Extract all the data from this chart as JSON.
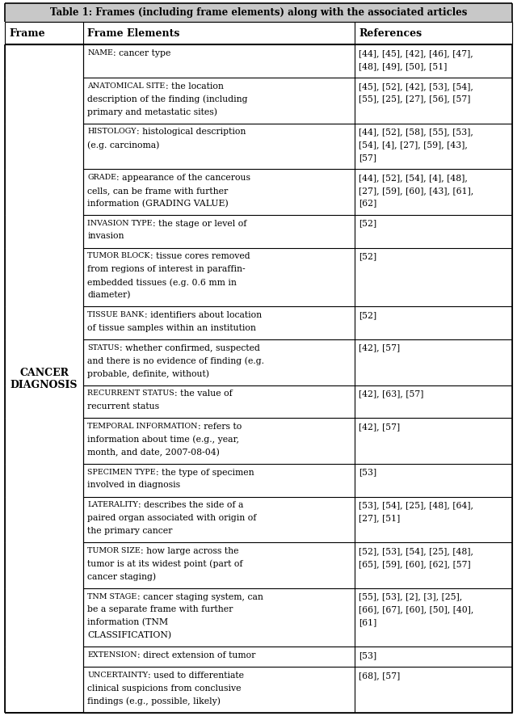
{
  "title": "Table 1: Frames (including frame elements) along with the associated articles",
  "headers": [
    "Frame",
    "Frame Elements",
    "References"
  ],
  "frame_label": "CANCER\nDIAGNOSIS",
  "rows": [
    {
      "sc": "Name",
      "rest": ": cancer type",
      "ref": "[44], [45], [42], [46], [47],\n[48], [49], [50], [51]",
      "nlines_elem": 1,
      "nlines_ref": 2
    },
    {
      "sc": "Anatomical Site",
      "rest": ": the location\ndescription of the finding (including\nprimary and metastatic sites)",
      "ref": "[45], [52], [42], [53], [54],\n[55], [25], [27], [56], [57]",
      "nlines_elem": 3,
      "nlines_ref": 2
    },
    {
      "sc": "Histology",
      "rest": ": histological description\n(e.g. carcinoma)",
      "ref": "[44], [52], [58], [55], [53],\n[54], [4], [27], [59], [43],\n[57]",
      "nlines_elem": 2,
      "nlines_ref": 3
    },
    {
      "sc": "Grade",
      "rest": ": appearance of the cancerous\ncells, can be frame with further\ninformation (GRADING VALUE)",
      "ref": "[44], [52], [54], [4], [48],\n[27], [59], [60], [43], [61],\n[62]",
      "nlines_elem": 3,
      "nlines_ref": 3
    },
    {
      "sc": "Invasion Type",
      "rest": ": the stage or level of\ninvasion",
      "ref": "[52]",
      "nlines_elem": 2,
      "nlines_ref": 1
    },
    {
      "sc": "Tumor Block",
      "rest": ": tissue cores removed\nfrom regions of interest in paraffin-\nembedded tissues (e.g. 0.6 mm in\ndiameter)",
      "ref": "[52]",
      "nlines_elem": 4,
      "nlines_ref": 1
    },
    {
      "sc": "Tissue Bank",
      "rest": ": identifiers about location\nof tissue samples within an institution",
      "ref": "[52]",
      "nlines_elem": 2,
      "nlines_ref": 1
    },
    {
      "sc": "Status",
      "rest": ": whether confirmed, suspected\nand there is no evidence of finding (e.g.\nprobable, definite, without)",
      "ref": "[42], [57]",
      "nlines_elem": 3,
      "nlines_ref": 1
    },
    {
      "sc": "Recurrent Status",
      "rest": ": the value of\nrecurrent status",
      "ref": "[42], [63], [57]",
      "nlines_elem": 2,
      "nlines_ref": 1
    },
    {
      "sc": "Temporal Information",
      "rest": ": refers to\ninformation about time (e.g., year,\nmonth, and date, 2007-08-04)",
      "ref": "[42], [57]",
      "nlines_elem": 3,
      "nlines_ref": 1
    },
    {
      "sc": "Specimen Type",
      "rest": ": the type of specimen\ninvolved in diagnosis",
      "ref": "[53]",
      "nlines_elem": 2,
      "nlines_ref": 1
    },
    {
      "sc": "Laterality",
      "rest": ": describes the side of a\npaired organ associated with origin of\nthe primary cancer",
      "ref": "[53], [54], [25], [48], [64],\n[27], [51]",
      "nlines_elem": 3,
      "nlines_ref": 2
    },
    {
      "sc": "Tumor Size",
      "rest": ": how large across the\ntumor is at its widest point (part of\ncancer staging)",
      "ref": "[52], [53], [54], [25], [48],\n[65], [59], [60], [62], [57]",
      "nlines_elem": 3,
      "nlines_ref": 2
    },
    {
      "sc": "TNM Stage",
      "rest": ": cancer staging system, can\nbe a separate frame with further\ninformation (TNM\nCLASSIFICATION)",
      "ref": "[55], [53], [2], [3], [25],\n[66], [67], [60], [50], [40],\n[61]",
      "nlines_elem": 4,
      "nlines_ref": 3
    },
    {
      "sc": "Extension",
      "rest": ": direct extension of tumor",
      "ref": "[53]",
      "nlines_elem": 1,
      "nlines_ref": 1
    },
    {
      "sc": "Uncertainty",
      "rest": ": used to differentiate\nclinical suspicions from conclusive\nfindings (e.g., possible, likely)",
      "ref": "[68], [57]",
      "nlines_elem": 3,
      "nlines_ref": 1
    }
  ]
}
